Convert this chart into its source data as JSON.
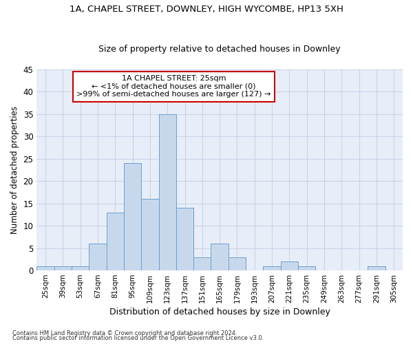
{
  "title1": "1A, CHAPEL STREET, DOWNLEY, HIGH WYCOMBE, HP13 5XH",
  "title2": "Size of property relative to detached houses in Downley",
  "xlabel": "Distribution of detached houses by size in Downley",
  "ylabel": "Number of detached properties",
  "bar_color": "#c8d8ec",
  "bar_edge_color": "#6a9fd0",
  "annotation_line1": "1A CHAPEL STREET: 25sqm",
  "annotation_line2": "← <1% of detached houses are smaller (0)",
  "annotation_line3": ">99% of semi-detached houses are larger (127) →",
  "annotation_box_color": "white",
  "annotation_box_edge_color": "#cc0000",
  "footnote1": "Contains HM Land Registry data © Crown copyright and database right 2024.",
  "footnote2": "Contains public sector information licensed under the Open Government Licence v3.0.",
  "categories": [
    "25sqm",
    "39sqm",
    "53sqm",
    "67sqm",
    "81sqm",
    "95sqm",
    "109sqm",
    "123sqm",
    "137sqm",
    "151sqm",
    "165sqm",
    "179sqm",
    "193sqm",
    "207sqm",
    "221sqm",
    "235sqm",
    "249sqm",
    "263sqm",
    "277sqm",
    "291sqm",
    "305sqm"
  ],
  "values": [
    1,
    1,
    1,
    6,
    13,
    24,
    16,
    35,
    14,
    3,
    6,
    3,
    0,
    1,
    2,
    1,
    0,
    0,
    0,
    1,
    0
  ],
  "ylim": [
    0,
    45
  ],
  "yticks": [
    0,
    5,
    10,
    15,
    20,
    25,
    30,
    35,
    40,
    45
  ],
  "grid_color": "#c8d4e8",
  "background_color": "#e8eef8"
}
